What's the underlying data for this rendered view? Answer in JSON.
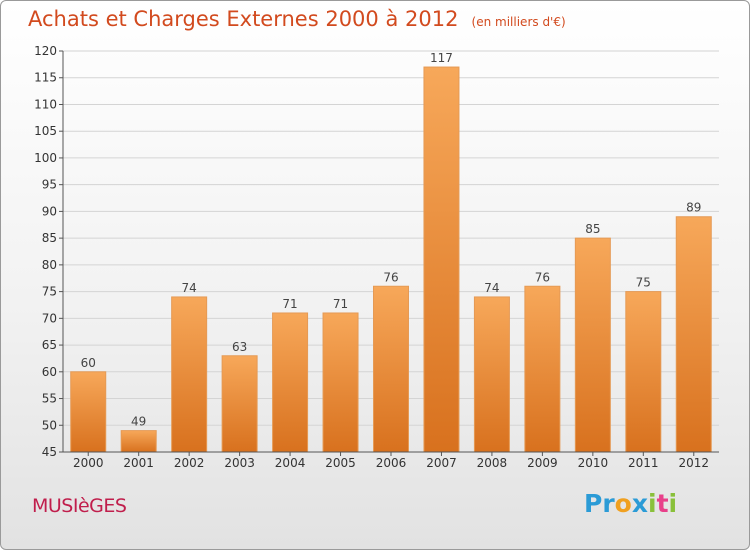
{
  "title": "Achats et Charges Externes 2000 à 2012",
  "subtitle": "(en milliers d'€)",
  "commune": "MUSIèGES",
  "logo": {
    "letters": [
      "P",
      "r",
      "o",
      "x",
      "i",
      "t",
      "i"
    ],
    "colors": [
      "#2b9bd6",
      "#2b9bd6",
      "#f0a020",
      "#2b9bd6",
      "#89c03a",
      "#e8408a",
      "#89c03a"
    ]
  },
  "colors": {
    "title": "#d24a1e",
    "commune": "#c01e4c",
    "bar_light": "#f7a85a",
    "bar_dark": "#d8711e"
  },
  "chart_data": {
    "type": "bar",
    "categories": [
      "2000",
      "2001",
      "2002",
      "2003",
      "2004",
      "2005",
      "2006",
      "2007",
      "2008",
      "2009",
      "2010",
      "2011",
      "2012"
    ],
    "values": [
      60,
      49,
      74,
      63,
      71,
      71,
      76,
      117,
      74,
      76,
      85,
      75,
      89
    ],
    "ylim": [
      45,
      120
    ],
    "yticks": [
      45,
      50,
      55,
      60,
      65,
      70,
      75,
      80,
      85,
      90,
      95,
      100,
      105,
      110,
      115,
      120
    ],
    "grid": true,
    "data_labels": true
  }
}
